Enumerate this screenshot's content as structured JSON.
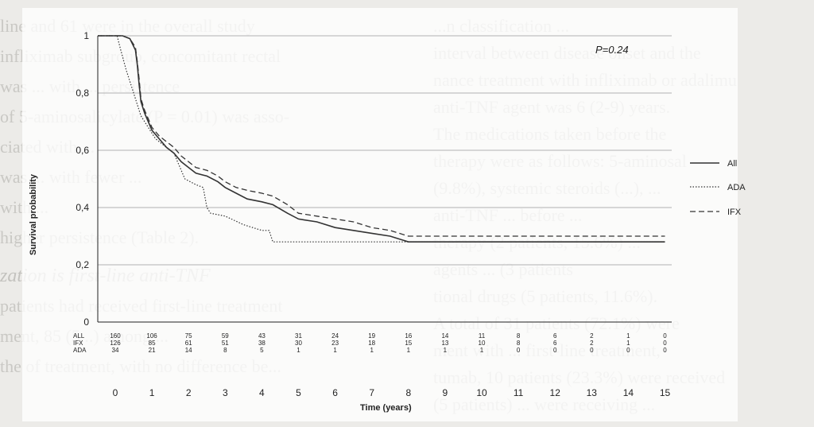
{
  "background_text": {
    "left": [
      "line and 61 were in the overall study",
      "infliximab subgroup, concomitant rectal",
      "was ... with ... persistence",
      "of 5-aminosalicylate (P = 0.01) was asso-",
      "ciated with ...",
      "was ... with fewer ...",
      "with ...",
      "higher persistence (Table 2).",
      "zation is first-line anti-TNF",
      "patients had received first-line treatment",
      "ment, 85 (5...) among ...",
      "the of treatment, with no difference be..."
    ],
    "right": [
      "...n classification ...",
      "interval between disease onset and the",
      "nance treatment with infliximab or adalimu",
      "anti-TNF agent was 6 (2-9) years.",
      "The medications taken before the",
      "therapy were as follows: 5-aminosal",
      "(9.8%), systemic steroids (...), ...",
      "anti-TNF ... before ...",
      "therapy (2 patients, 15.6%) ... ",
      "agents ... (3 patients",
      "tional drugs (5 patients, 11.6%).",
      "A total of 31 patients (72.1%) were",
      "ment with ... first-line treatment,",
      "tumab, 10 patients (23.3%) were received",
      "(5 patients) ... were receiving ..."
    ]
  },
  "chart_data": {
    "type": "line",
    "subtype": "kaplan-meier",
    "title": "",
    "annotation": "P=0.24",
    "xlabel": "Time (years)",
    "ylabel": "Survival probability",
    "xlim": [
      0,
      15
    ],
    "ylim": [
      0,
      1
    ],
    "x_ticks": [
      "0",
      "1",
      "2",
      "3",
      "4",
      "5",
      "6",
      "7",
      "8",
      "9",
      "10",
      "11",
      "12",
      "13",
      "14",
      "15"
    ],
    "y_ticks": [
      "0",
      "0,2",
      "0,4",
      "0,6",
      "0,8",
      "1"
    ],
    "grid": "horizontal",
    "legend_position": "right",
    "series": [
      {
        "name": "All",
        "style": "solid",
        "points": [
          [
            -0.5,
            1
          ],
          [
            0.2,
            1
          ],
          [
            0.4,
            0.99
          ],
          [
            0.55,
            0.95
          ],
          [
            0.6,
            0.9
          ],
          [
            0.65,
            0.83
          ],
          [
            0.7,
            0.77
          ],
          [
            0.8,
            0.73
          ],
          [
            0.9,
            0.7
          ],
          [
            1.0,
            0.67
          ],
          [
            1.2,
            0.64
          ],
          [
            1.4,
            0.61
          ],
          [
            1.6,
            0.59
          ],
          [
            1.8,
            0.56
          ],
          [
            2.0,
            0.54
          ],
          [
            2.2,
            0.52
          ],
          [
            2.5,
            0.51
          ],
          [
            2.8,
            0.49
          ],
          [
            3.0,
            0.47
          ],
          [
            3.3,
            0.45
          ],
          [
            3.6,
            0.43
          ],
          [
            4.0,
            0.42
          ],
          [
            4.3,
            0.41
          ],
          [
            4.7,
            0.38
          ],
          [
            5.0,
            0.36
          ],
          [
            5.5,
            0.35
          ],
          [
            6.0,
            0.33
          ],
          [
            6.5,
            0.32
          ],
          [
            7.0,
            0.31
          ],
          [
            7.5,
            0.3
          ],
          [
            8.0,
            0.28
          ],
          [
            15.0,
            0.28
          ]
        ]
      },
      {
        "name": "ADA",
        "style": "dotted",
        "points": [
          [
            -0.5,
            1
          ],
          [
            0.05,
            1
          ],
          [
            0.15,
            0.95
          ],
          [
            0.3,
            0.88
          ],
          [
            0.5,
            0.8
          ],
          [
            0.7,
            0.72
          ],
          [
            0.9,
            0.68
          ],
          [
            1.1,
            0.64
          ],
          [
            1.4,
            0.61
          ],
          [
            1.6,
            0.59
          ],
          [
            1.9,
            0.5
          ],
          [
            2.2,
            0.48
          ],
          [
            2.4,
            0.47
          ],
          [
            2.5,
            0.4
          ],
          [
            2.6,
            0.38
          ],
          [
            3.0,
            0.37
          ],
          [
            3.5,
            0.34
          ],
          [
            4.0,
            0.32
          ],
          [
            4.2,
            0.32
          ],
          [
            4.3,
            0.28
          ],
          [
            15.0,
            0.28
          ]
        ]
      },
      {
        "name": "IFX",
        "style": "dashed",
        "points": [
          [
            -0.5,
            1
          ],
          [
            0.2,
            1
          ],
          [
            0.4,
            0.99
          ],
          [
            0.55,
            0.96
          ],
          [
            0.6,
            0.91
          ],
          [
            0.65,
            0.85
          ],
          [
            0.7,
            0.78
          ],
          [
            0.8,
            0.74
          ],
          [
            0.9,
            0.71
          ],
          [
            1.0,
            0.68
          ],
          [
            1.2,
            0.65
          ],
          [
            1.4,
            0.63
          ],
          [
            1.6,
            0.61
          ],
          [
            1.8,
            0.58
          ],
          [
            2.0,
            0.56
          ],
          [
            2.2,
            0.54
          ],
          [
            2.5,
            0.53
          ],
          [
            2.8,
            0.51
          ],
          [
            3.0,
            0.49
          ],
          [
            3.3,
            0.47
          ],
          [
            3.6,
            0.46
          ],
          [
            4.0,
            0.45
          ],
          [
            4.3,
            0.44
          ],
          [
            4.7,
            0.41
          ],
          [
            5.0,
            0.38
          ],
          [
            5.5,
            0.37
          ],
          [
            6.0,
            0.36
          ],
          [
            6.5,
            0.35
          ],
          [
            7.0,
            0.33
          ],
          [
            7.5,
            0.32
          ],
          [
            8.0,
            0.3
          ],
          [
            15.0,
            0.3
          ]
        ]
      }
    ],
    "risk_table": {
      "rows": [
        {
          "label": "ALL",
          "values": [
            "160",
            "106",
            "75",
            "59",
            "43",
            "31",
            "24",
            "19",
            "16",
            "14",
            "11",
            "8",
            "6",
            "2",
            "1",
            "0"
          ]
        },
        {
          "label": "IFX",
          "values": [
            "126",
            "85",
            "61",
            "51",
            "38",
            "30",
            "23",
            "18",
            "15",
            "13",
            "10",
            "8",
            "6",
            "2",
            "1",
            "0"
          ]
        },
        {
          "label": "ADA",
          "values": [
            "34",
            "21",
            "14",
            "8",
            "5",
            "1",
            "1",
            "1",
            "1",
            "1",
            "1",
            "0",
            "0",
            "0",
            "0",
            "0"
          ]
        }
      ]
    }
  }
}
